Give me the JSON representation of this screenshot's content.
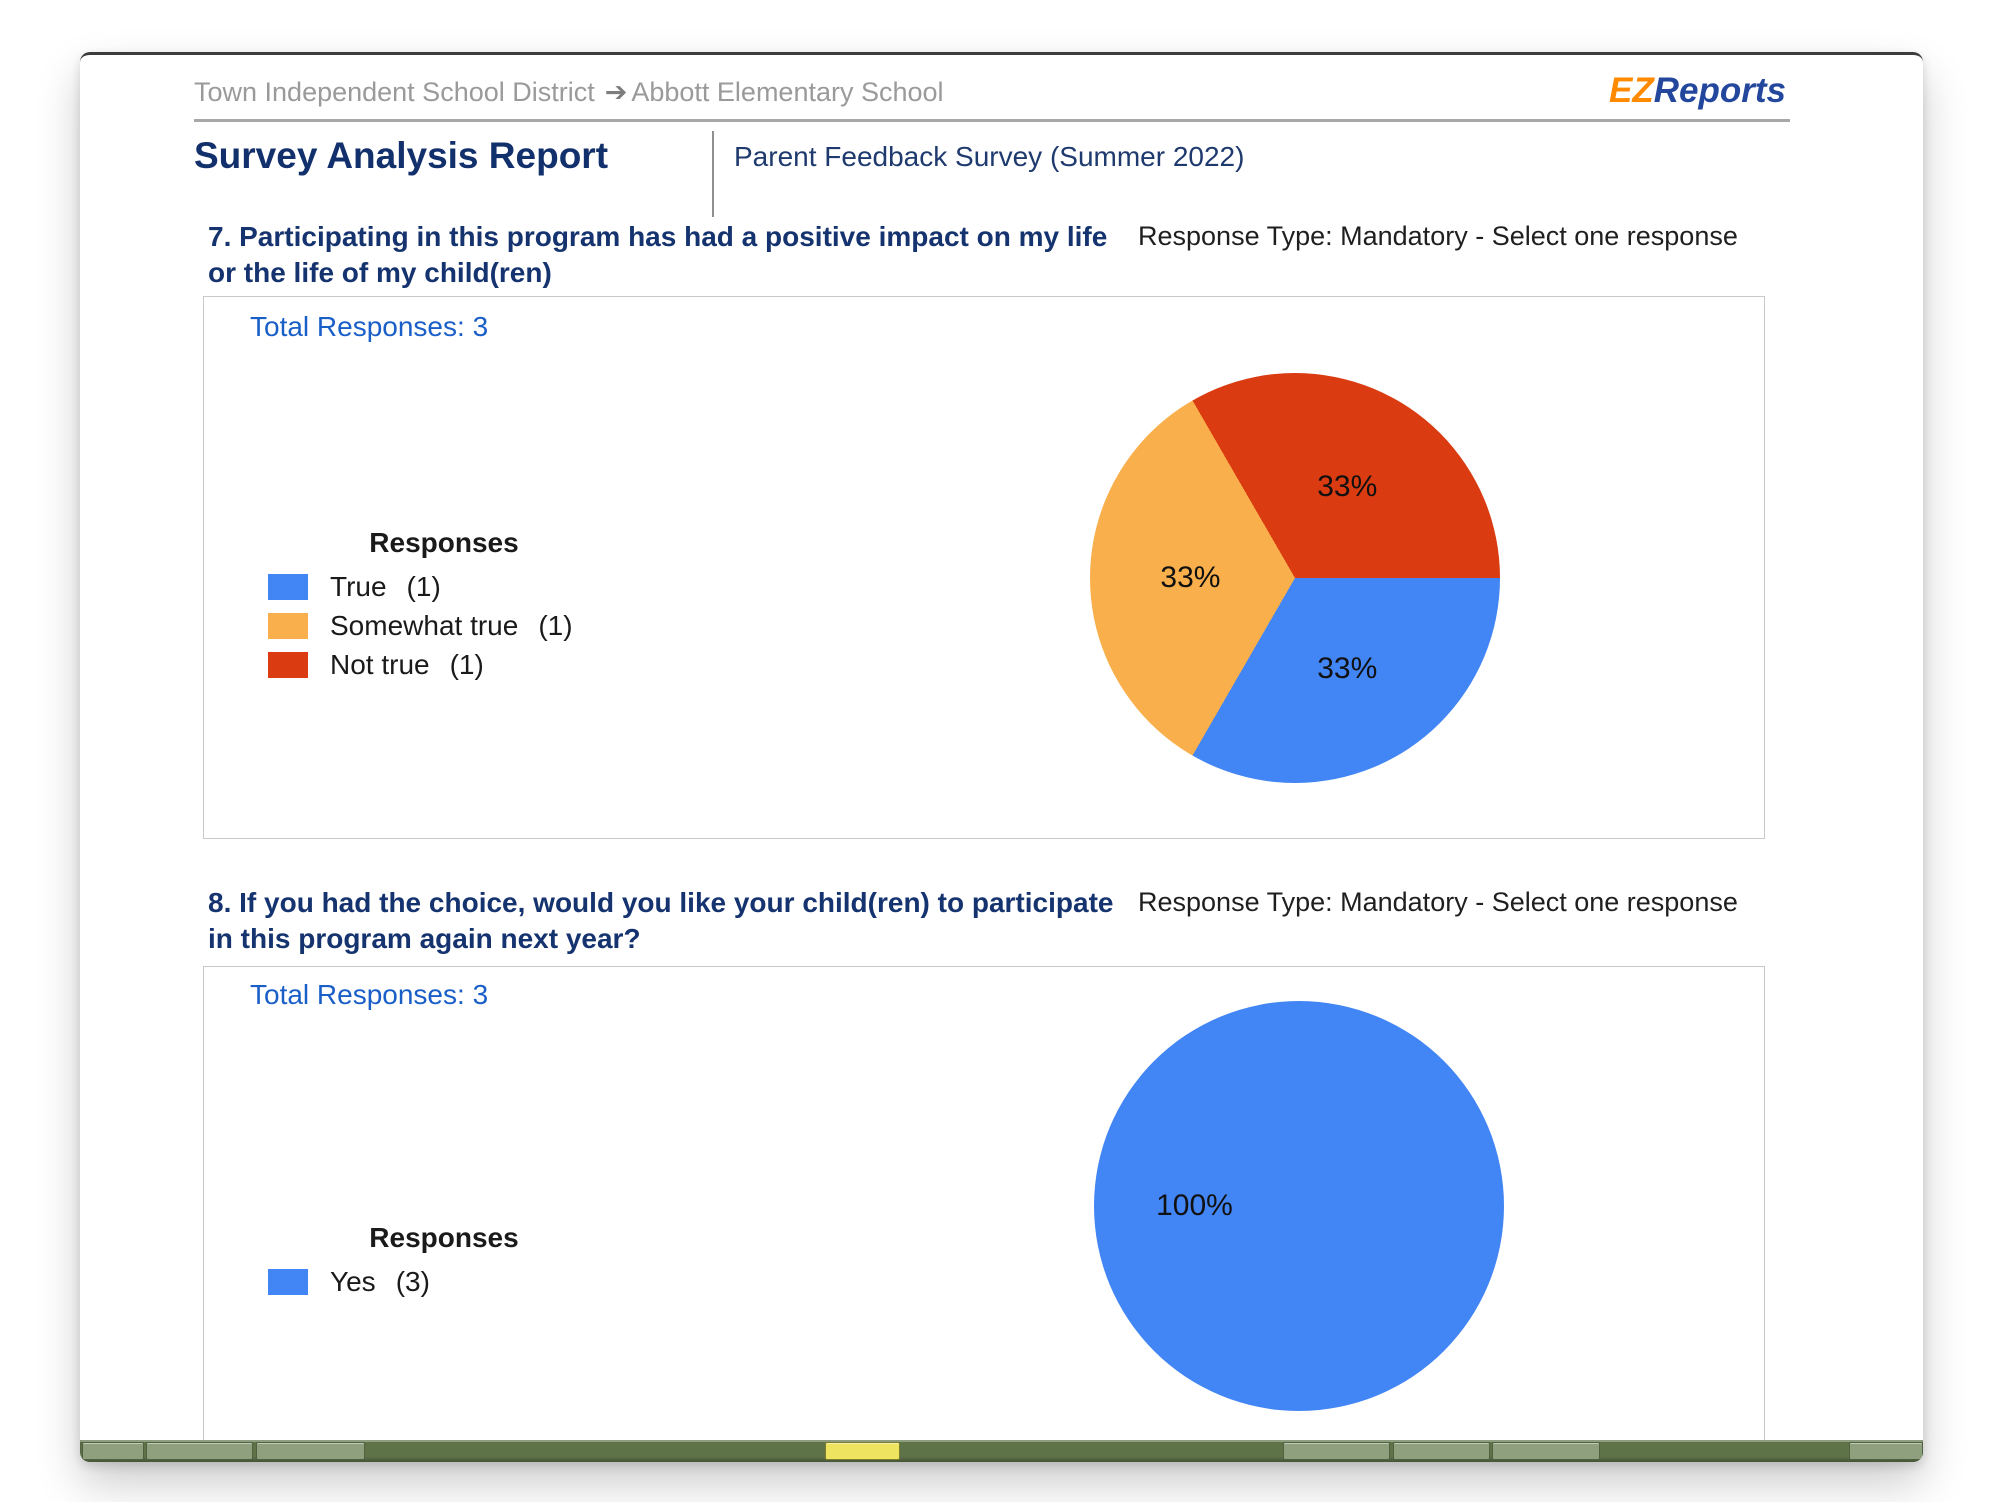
{
  "header": {
    "breadcrumb": {
      "district": "Town Independent School District",
      "separator": "➔",
      "school": "Abbott Elementary School"
    },
    "logo": {
      "ez": "EZ",
      "reports": "Reports"
    },
    "report_title": "Survey Analysis Report",
    "survey_title": "Parent Feedback Survey (Summer 2022)"
  },
  "questions": [
    {
      "title": "7. Participating in this program has had a positive impact on my life or the life of my child(ren)",
      "response_type": "Response Type: Mandatory - Select one response",
      "total_responses_label": "Total Responses: 3",
      "legend_title": "Responses"
    },
    {
      "title": "8. If you had the choice, would you like your child(ren) to participate in this program again next year?",
      "response_type": "Response Type: Mandatory - Select one response",
      "total_responses_label": "Total Responses: 3",
      "legend_title": "Responses"
    }
  ],
  "chart_data": [
    {
      "type": "pie",
      "title": "7. Participating in this program has had a positive impact on my life or the life of my child(ren)",
      "total_responses": 3,
      "legend_position": "left",
      "start_angle_deg": 90,
      "direction": "clockwise",
      "label_radius_ratio": 0.51,
      "slices": [
        {
          "label": "True",
          "count": 1,
          "percent": 33,
          "percent_label": "33%",
          "color": "#4285f4"
        },
        {
          "label": "Somewhat true",
          "count": 1,
          "percent": 33,
          "percent_label": "33%",
          "color": "#f9af4b"
        },
        {
          "label": "Not true",
          "count": 1,
          "percent": 33,
          "percent_label": "33%",
          "color": "#da3b10"
        }
      ]
    },
    {
      "type": "pie",
      "title": "8. If you had the choice, would you like your child(ren) to participate in this program again next year?",
      "total_responses": 3,
      "legend_position": "left",
      "start_angle_deg": 90,
      "direction": "clockwise",
      "label_radius_ratio": 0.51,
      "slices": [
        {
          "label": "Yes",
          "count": 3,
          "percent": 100,
          "percent_label": "100%",
          "color": "#4285f4"
        }
      ]
    }
  ],
  "colors": {
    "accent_navy": "#12306b",
    "link_blue": "#1a5fc8",
    "logo_orange": "#ff8a00",
    "logo_blue": "#24479e",
    "taskbar_green": "#5f7349",
    "taskbar_yellow": "#eee45f"
  }
}
